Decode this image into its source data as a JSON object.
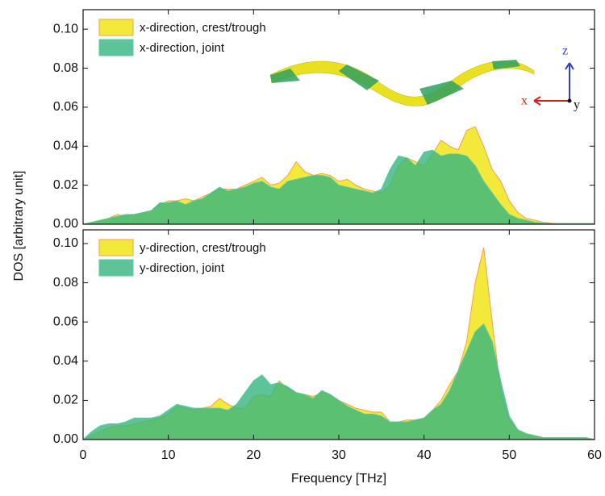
{
  "axis_labels": {
    "x": "Frequency [THz]",
    "y": "DOS [arbitrary unit]"
  },
  "inset": {
    "axis_labels": [
      "x",
      "y",
      "z"
    ]
  },
  "chart_data": [
    {
      "type": "area",
      "legend": "upper left",
      "show_xtick_labels": false,
      "xlim": [
        0,
        60
      ],
      "xticks": [
        0,
        10,
        20,
        30,
        40,
        50,
        60
      ],
      "ylim": [
        0,
        0.11
      ],
      "yticks": [
        {
          "value": 0,
          "label": "0.00"
        },
        0.02,
        0.04,
        0.06,
        0.08,
        {
          "value": 0.1,
          "label": "0.10"
        }
      ],
      "x": [
        0,
        1,
        2,
        3,
        4,
        5,
        6,
        7,
        8,
        9,
        10,
        11,
        12,
        13,
        14,
        15,
        16,
        17,
        18,
        19,
        20,
        21,
        22,
        23,
        24,
        25,
        26,
        27,
        28,
        29,
        30,
        31,
        32,
        33,
        34,
        35,
        36,
        37,
        38,
        39,
        40,
        41,
        42,
        43,
        44,
        45,
        46,
        47,
        48,
        49,
        50,
        51,
        52,
        53,
        54,
        55,
        56,
        57,
        58,
        59,
        60
      ],
      "series": [
        {
          "name": "x-direction, crest/trough",
          "color": "#f2e830",
          "edge": "#f0a050",
          "values": [
            0,
            0.001,
            0.002,
            0.003,
            0.005,
            0.004,
            0.005,
            0.006,
            0.007,
            0.01,
            0.012,
            0.012,
            0.013,
            0.012,
            0.014,
            0.016,
            0.018,
            0.018,
            0.018,
            0.02,
            0.022,
            0.024,
            0.02,
            0.021,
            0.025,
            0.032,
            0.027,
            0.025,
            0.026,
            0.025,
            0.022,
            0.023,
            0.02,
            0.018,
            0.017,
            0.016,
            0.02,
            0.03,
            0.034,
            0.032,
            0.03,
            0.036,
            0.043,
            0.04,
            0.038,
            0.048,
            0.05,
            0.04,
            0.028,
            0.022,
            0.012,
            0.006,
            0.003,
            0.002,
            0.001,
            0.0005,
            0.0003,
            0.0003,
            0.0003,
            0.0003,
            0.0003
          ]
        },
        {
          "name": "x-direction, joint",
          "color": "#35b57f",
          "edge": "#5fc9a0",
          "values": [
            0,
            0.001,
            0.002,
            0.003,
            0.004,
            0.005,
            0.005,
            0.006,
            0.007,
            0.011,
            0.011,
            0.012,
            0.01,
            0.012,
            0.013,
            0.016,
            0.019,
            0.017,
            0.018,
            0.019,
            0.021,
            0.022,
            0.019,
            0.018,
            0.022,
            0.023,
            0.024,
            0.025,
            0.025,
            0.024,
            0.02,
            0.019,
            0.018,
            0.017,
            0.016,
            0.018,
            0.028,
            0.035,
            0.034,
            0.03,
            0.037,
            0.038,
            0.035,
            0.036,
            0.036,
            0.035,
            0.03,
            0.022,
            0.016,
            0.01,
            0.005,
            0.003,
            0.002,
            0.001,
            0.0005,
            0.0003,
            0.0003,
            0.0003,
            0.0003,
            0.0003,
            0.0003
          ]
        }
      ]
    },
    {
      "type": "area",
      "legend": "upper left",
      "show_xtick_labels": true,
      "xlim": [
        0,
        60
      ],
      "xticks": [
        0,
        10,
        20,
        30,
        40,
        50,
        60
      ],
      "ylim": [
        0,
        0.107
      ],
      "yticks": [
        {
          "value": 0,
          "label": "0.00"
        },
        0.02,
        0.04,
        0.06,
        0.08,
        {
          "value": 0.1,
          "label": "0.10"
        }
      ],
      "x": [
        0,
        1,
        2,
        3,
        4,
        5,
        6,
        7,
        8,
        9,
        10,
        11,
        12,
        13,
        14,
        15,
        16,
        17,
        18,
        19,
        20,
        21,
        22,
        23,
        24,
        25,
        26,
        27,
        28,
        29,
        30,
        31,
        32,
        33,
        34,
        35,
        36,
        37,
        38,
        39,
        40,
        41,
        42,
        43,
        44,
        45,
        46,
        47,
        48,
        49,
        50,
        51,
        52,
        53,
        54,
        55,
        56,
        57,
        58,
        59,
        60
      ],
      "series": [
        {
          "name": "y-direction, crest/trough",
          "color": "#f2e830",
          "edge": "#f0a050",
          "values": [
            0,
            0.002,
            0.004,
            0.006,
            0.007,
            0.007,
            0.008,
            0.009,
            0.01,
            0.011,
            0.013,
            0.017,
            0.016,
            0.015,
            0.016,
            0.017,
            0.021,
            0.018,
            0.016,
            0.016,
            0.022,
            0.023,
            0.022,
            0.03,
            0.026,
            0.024,
            0.023,
            0.022,
            0.024,
            0.023,
            0.02,
            0.018,
            0.016,
            0.015,
            0.014,
            0.014,
            0.009,
            0.009,
            0.01,
            0.01,
            0.011,
            0.015,
            0.02,
            0.028,
            0.035,
            0.05,
            0.08,
            0.098,
            0.06,
            0.025,
            0.01,
            0.005,
            0.003,
            0.002,
            0.001,
            0.001,
            0.001,
            0.001,
            0.001,
            0.001,
            0
          ]
        },
        {
          "name": "y-direction, joint",
          "color": "#35b57f",
          "edge": "#5fc9a0",
          "values": [
            0,
            0.004,
            0.007,
            0.008,
            0.008,
            0.009,
            0.011,
            0.011,
            0.011,
            0.012,
            0.015,
            0.018,
            0.017,
            0.016,
            0.016,
            0.016,
            0.016,
            0.015,
            0.018,
            0.024,
            0.03,
            0.033,
            0.028,
            0.029,
            0.027,
            0.024,
            0.023,
            0.021,
            0.025,
            0.023,
            0.02,
            0.017,
            0.015,
            0.013,
            0.013,
            0.012,
            0.009,
            0.009,
            0.009,
            0.01,
            0.011,
            0.015,
            0.018,
            0.025,
            0.035,
            0.045,
            0.055,
            0.059,
            0.05,
            0.03,
            0.012,
            0.005,
            0.003,
            0.002,
            0.001,
            0.001,
            0.001,
            0.001,
            0.001,
            0.001,
            0
          ]
        }
      ]
    }
  ]
}
